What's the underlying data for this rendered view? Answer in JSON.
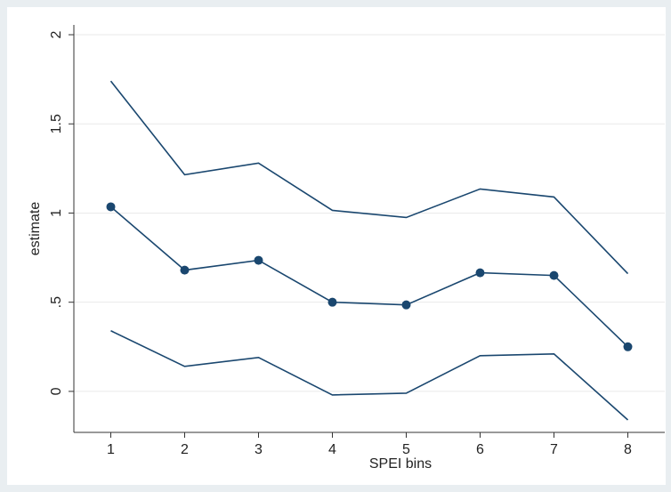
{
  "chart_data": {
    "type": "line",
    "x_label": "SPEI bins",
    "y_label": "estimate",
    "x": [
      1,
      2,
      3,
      4,
      5,
      6,
      7,
      8
    ],
    "series": [
      {
        "color": "#1a476f",
        "markers": false,
        "values": [
          1.74,
          1.215,
          1.28,
          1.015,
          0.975,
          1.135,
          1.09,
          0.66
        ]
      },
      {
        "color": "#1a476f",
        "markers": true,
        "values": [
          1.035,
          0.68,
          0.735,
          0.5,
          0.485,
          0.665,
          0.65,
          0.25
        ]
      },
      {
        "color": "#1a476f",
        "markers": false,
        "values": [
          0.34,
          0.14,
          0.19,
          -0.02,
          -0.01,
          0.2,
          0.21,
          -0.16
        ]
      }
    ],
    "xlim": [
      0.5,
      8.5
    ],
    "xticks": [
      1,
      2,
      3,
      4,
      5,
      6,
      7,
      8
    ],
    "ylim": [
      -0.23,
      2.055
    ],
    "yticks": [
      0,
      {
        "value": 0.5,
        "label": ".5"
      },
      1,
      1.5,
      2
    ],
    "grid": true
  }
}
